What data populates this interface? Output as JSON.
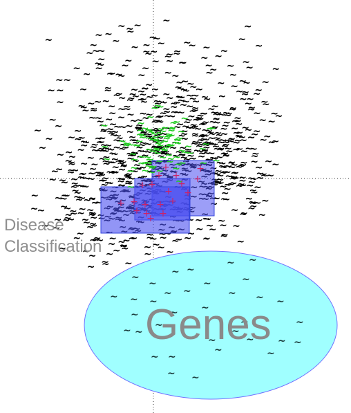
{
  "chart_data": {
    "type": "scatter",
    "title": "",
    "xlabel": "",
    "ylabel": "",
    "xlim": [
      -1,
      1
    ],
    "ylim": [
      -1,
      1
    ],
    "grid": false,
    "axes": "dotted crosshair through origin",
    "series": [
      {
        "marker": "~",
        "color": "#000000",
        "points_description": "dense black tilde cloud",
        "points": [
          [
            -0.3,
            0.2
          ],
          [
            -0.2,
            0.3
          ],
          [
            -0.1,
            0.25
          ],
          [
            0.05,
            0.3
          ],
          [
            0.15,
            0.2
          ],
          [
            -0.35,
            0.05
          ],
          [
            -0.25,
            0.1
          ],
          [
            0.2,
            0.05
          ],
          [
            0.3,
            0.1
          ],
          [
            0.35,
            0.0
          ],
          [
            -0.4,
            -0.05
          ],
          [
            -0.3,
            -0.1
          ],
          [
            0.25,
            -0.05
          ],
          [
            0.1,
            0.45
          ],
          [
            -0.05,
            0.55
          ],
          [
            -0.15,
            0.65
          ],
          [
            0.05,
            0.7
          ],
          [
            -0.2,
            0.45
          ],
          [
            0.2,
            0.4
          ],
          [
            0.3,
            0.3
          ]
        ]
      },
      {
        "marker": "~",
        "color": "#22cc22",
        "points_description": "green tildes near center",
        "points": [
          [
            -0.05,
            0.12
          ],
          [
            0.0,
            0.08
          ],
          [
            0.05,
            0.1
          ],
          [
            -0.08,
            0.05
          ],
          [
            0.03,
            0.15
          ],
          [
            -0.02,
            0.2
          ],
          [
            0.08,
            0.05
          ],
          [
            -0.1,
            0.1
          ]
        ]
      },
      {
        "marker": "+",
        "color": "#cc2266",
        "points_description": "magenta plus markers inside blue rectangles",
        "points": [
          [
            -0.1,
            -0.05
          ],
          [
            0.0,
            -0.1
          ],
          [
            0.1,
            -0.05
          ],
          [
            0.05,
            -0.15
          ],
          [
            -0.05,
            -0.2
          ],
          [
            0.15,
            0.0
          ],
          [
            0.25,
            0.05
          ],
          [
            -0.15,
            -0.12
          ],
          [
            0.08,
            -0.22
          ],
          [
            0.2,
            -0.1
          ]
        ]
      },
      {
        "marker": "~",
        "color": "#1a3a3a",
        "points_description": "dark teal tildes inside cyan ellipse",
        "points": [
          [
            -0.25,
            -0.45
          ],
          [
            -0.1,
            -0.55
          ],
          [
            0.05,
            -0.5
          ],
          [
            0.2,
            -0.6
          ],
          [
            0.35,
            -0.5
          ],
          [
            -0.2,
            -0.7
          ],
          [
            0.0,
            -0.8
          ],
          [
            0.15,
            -0.75
          ],
          [
            0.3,
            -0.7
          ],
          [
            -0.05,
            -0.65
          ],
          [
            0.4,
            -0.62
          ],
          [
            -0.3,
            -0.6
          ]
        ]
      }
    ],
    "regions": [
      {
        "label": "Disease\nClassification",
        "shape": "rect",
        "color": "#4a4ff0"
      },
      {
        "label": "Genes",
        "shape": "ellipse",
        "color": "#a0ffff"
      }
    ]
  },
  "labels": {
    "disease_line1": "Disease",
    "disease_line2": "Classification",
    "genes": "Genes"
  }
}
